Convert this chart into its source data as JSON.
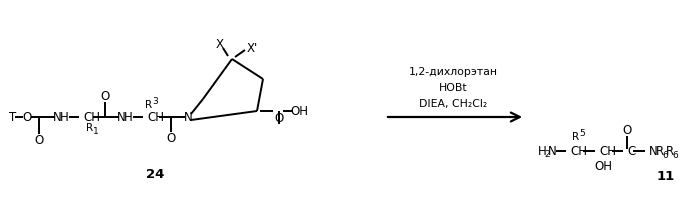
{
  "bg_color": "#ffffff",
  "text_color": "#000000",
  "reagents_line1": "1,2-дихлорэтан",
  "reagents_line2": "HOBt",
  "reagents_line3": "DIEA, CH₂Cl₂",
  "compound_24": "24",
  "compound_11": "11",
  "figsize": [
    6.97,
    2.05
  ],
  "dpi": 100
}
